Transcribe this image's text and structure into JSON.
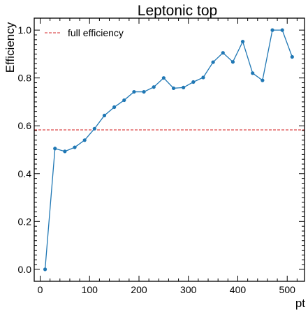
{
  "chart_data": {
    "type": "line",
    "title": "Leptonic top",
    "xlabel": "pt",
    "ylabel": "Efficiency",
    "xlim": [
      -12,
      535
    ],
    "ylim": [
      -0.05,
      1.05
    ],
    "x_ticks": [
      0,
      100,
      200,
      300,
      400,
      500
    ],
    "y_ticks": [
      0.0,
      0.2,
      0.4,
      0.6,
      0.8,
      1.0
    ],
    "x_tick_labels": [
      "0",
      "100",
      "200",
      "300",
      "400",
      "500"
    ],
    "y_tick_labels": [
      "0.0",
      "0.2",
      "0.4",
      "0.6",
      "0.8",
      "1.0"
    ],
    "grid": false,
    "legend_position": "top-left",
    "series": [
      {
        "color": "#1f77b4",
        "x": [
          10,
          30,
          50,
          70,
          90,
          110,
          130,
          150,
          170,
          190,
          210,
          230,
          250,
          270,
          290,
          310,
          330,
          350,
          370,
          390,
          410,
          430,
          450,
          470,
          490,
          510
        ],
        "y": [
          0.0,
          0.505,
          0.493,
          0.51,
          0.54,
          0.588,
          0.643,
          0.678,
          0.707,
          0.742,
          0.742,
          0.762,
          0.8,
          0.757,
          0.76,
          0.783,
          0.802,
          0.866,
          0.905,
          0.867,
          0.952,
          0.82,
          0.79,
          1.0,
          1.0,
          0.888
        ]
      }
    ],
    "reference_lines": [
      {
        "name": "full efficiency",
        "orientation": "horizontal",
        "y": 0.583,
        "color": "#d62728",
        "style": "dashed"
      }
    ]
  }
}
